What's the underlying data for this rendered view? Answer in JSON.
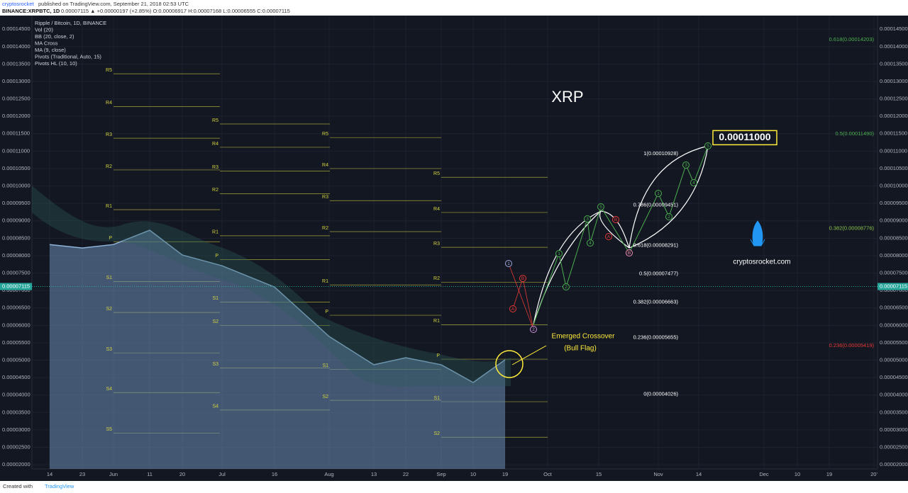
{
  "header": {
    "author": "cryptosrocket",
    "published": "published on TradingView.com, September 21, 2018 02:53 UTC",
    "symbol": "BINANCE:XRPBTC, 1D",
    "quote": "0.00007115 ▲ +0.00000197 (+2.85%) O:0.00006917 H:0.00007168 L:0.00006555 C:0.00007115"
  },
  "legend": [
    "Ripple / Bitcoin, 1D, BINANCE",
    "Vol (20)",
    "BB (20, close, 2)",
    "MA Cross",
    "MA (9, close)",
    "Pivots (Traditional, Auto, 15)",
    "Pivots HL (10, 10)"
  ],
  "chart_data": {
    "type": "line",
    "color": "#8fb3d9",
    "categories": [
      "14",
      "23",
      "Jun",
      "11",
      "20",
      "Jul",
      "16",
      "Aug",
      "13",
      "22",
      "Sep",
      "10",
      "19",
      "Oct",
      "15",
      "Nov",
      "14",
      "Dec",
      "10",
      "19",
      "20'"
    ],
    "values": [
      8.32e-05,
      8.22e-05,
      8.32e-05,
      8.73e-05,
      8.02e-05,
      7.71e-05,
      7.1e-05,
      5.68e-05,
      4.87e-05,
      5.07e-05,
      4.87e-05,
      4.36e-05,
      5.01e-05,
      null,
      null,
      null,
      null,
      null,
      null,
      null,
      null
    ],
    "ylim": [
      1.88e-05,
      0.0001489
    ],
    "yticks": [
      {
        "value": 0.000145,
        "label": "0.00014500"
      },
      {
        "value": 0.00014,
        "label": "0.00014000"
      },
      {
        "value": 0.000135,
        "label": "0.00013500"
      },
      {
        "value": 0.00013,
        "label": "0.00013000"
      },
      {
        "value": 0.000125,
        "label": "0.00012500"
      },
      {
        "value": 0.00012,
        "label": "0.00012000"
      },
      {
        "value": 0.000115,
        "label": "0.00011500"
      },
      {
        "value": 0.00011,
        "label": "0.00011000"
      },
      {
        "value": 0.000105,
        "label": "0.00010500"
      },
      {
        "value": 0.0001,
        "label": "0.00010000"
      },
      {
        "value": 9.5e-05,
        "label": "0.00009500"
      },
      {
        "value": 9e-05,
        "label": "0.00009000"
      },
      {
        "value": 8.5e-05,
        "label": "0.00008500"
      },
      {
        "value": 8e-05,
        "label": "0.00008000"
      },
      {
        "value": 7.5e-05,
        "label": "0.00007500"
      },
      {
        "value": 7e-05,
        "label": "0.00007000"
      },
      {
        "value": 6.5e-05,
        "label": "0.00006500"
      },
      {
        "value": 6e-05,
        "label": "0.00006000"
      },
      {
        "value": 5.5e-05,
        "label": "0.00005500"
      },
      {
        "value": 5e-05,
        "label": "0.00005000"
      },
      {
        "value": 4.5e-05,
        "label": "0.00004500"
      },
      {
        "value": 4e-05,
        "label": "0.00004000"
      },
      {
        "value": 3.5e-05,
        "label": "0.00003500"
      },
      {
        "value": 3e-05,
        "label": "0.00003000"
      },
      {
        "value": 2.5e-05,
        "label": "0.00002500"
      },
      {
        "value": 2e-05,
        "label": "0.00002000"
      }
    ],
    "grid": true,
    "price_tag": {
      "value": 7.115e-05,
      "label": "0.00007115"
    },
    "pivots": [
      {
        "levels": [
          {
            "label": "R5",
            "value": 0.0001322
          },
          {
            "label": "R4",
            "value": 0.0001228
          },
          {
            "label": "R3",
            "value": 0.0001137
          },
          {
            "label": "R2",
            "value": 0.0001046
          },
          {
            "label": "R1",
            "value": 9.32e-05
          },
          {
            "label": "P",
            "value": 8.4e-05
          },
          {
            "label": "S1",
            "value": 7.26e-05
          },
          {
            "label": "S2",
            "value": 6.37e-05
          },
          {
            "label": "S3",
            "value": 5.21e-05
          },
          {
            "label": "S4",
            "value": 4.07e-05
          },
          {
            "label": "S5",
            "value": 2.91e-05
          }
        ]
      },
      {
        "levels": [
          {
            "label": "R5",
            "value": 0.0001178
          },
          {
            "label": "R4",
            "value": 0.0001111
          },
          {
            "label": "R3",
            "value": 0.0001043
          },
          {
            "label": "R2",
            "value": 9.78e-05
          },
          {
            "label": "R1",
            "value": 8.57e-05
          },
          {
            "label": "P",
            "value": 7.89e-05
          },
          {
            "label": "S1",
            "value": 6.67e-05
          },
          {
            "label": "S2",
            "value": 6e-05
          },
          {
            "label": "S3",
            "value": 4.78e-05
          },
          {
            "label": "S4",
            "value": 3.57e-05
          }
        ]
      },
      {
        "levels": [
          {
            "label": "R5",
            "value": 0.0001139
          },
          {
            "label": "R4",
            "value": 0.000105
          },
          {
            "label": "R3",
            "value": 9.58e-05
          },
          {
            "label": "R2",
            "value": 8.69e-05
          },
          {
            "label": "R1",
            "value": 7.16e-05
          },
          {
            "label": "P",
            "value": 6.29e-05
          },
          {
            "label": "S1",
            "value": 4.74e-05
          },
          {
            "label": "S2",
            "value": 3.85e-05
          }
        ]
      },
      {
        "levels": [
          {
            "label": "R5",
            "value": 0.0001025
          },
          {
            "label": "R4",
            "value": 9.24e-05
          },
          {
            "label": "R3",
            "value": 8.24e-05
          },
          {
            "label": "R2",
            "value": 7.24e-05
          },
          {
            "label": "R1",
            "value": 6.02e-05
          },
          {
            "label": "P",
            "value": 5.03e-05
          },
          {
            "label": "S1",
            "value": 3.81e-05
          },
          {
            "label": "S2",
            "value": 2.79e-05
          }
        ]
      }
    ],
    "fib_left": [
      {
        "label": "1(0.00010928)",
        "value": 0.00010928
      },
      {
        "label": "0.786(0.00009451)",
        "value": 9.451e-05
      },
      {
        "label": "0.618(0.00008291)",
        "value": 8.291e-05
      },
      {
        "label": "0.5(0.00007477)",
        "value": 7.477e-05
      },
      {
        "label": "0.382(0.00006663)",
        "value": 6.663e-05
      },
      {
        "label": "0.236(0.00005655)",
        "value": 5.655e-05
      },
      {
        "label": "0(0.00004026)",
        "value": 4.026e-05
      }
    ],
    "fib_right": [
      {
        "label": "0.618(0.00014203)",
        "value": 0.00014203,
        "color": "#4caf50"
      },
      {
        "label": "0.5(0.00011490)",
        "value": 0.0001149,
        "color": "#4caf50"
      },
      {
        "label": "0.382(0.00008776)",
        "value": 8.776e-05,
        "color": "#8bc34a"
      },
      {
        "label": "0.236(0.00005419)",
        "value": 5.419e-05,
        "color": "#e53935"
      }
    ],
    "target": {
      "value": 0.00011,
      "label": "0.00011000"
    }
  },
  "annotations": {
    "title": "XRP",
    "crossover": "Emerged Crossover",
    "flag": "(Bull Flag)",
    "site": "cryptosrocket.com"
  },
  "wave_labels": [
    "1",
    "2",
    "1",
    "2",
    "3",
    "4",
    "5",
    "A",
    "B",
    "B",
    "1",
    "2",
    "3",
    "4",
    "5",
    "A",
    "B"
  ],
  "footer": {
    "created": "Created with",
    "brand": "TradingView"
  }
}
